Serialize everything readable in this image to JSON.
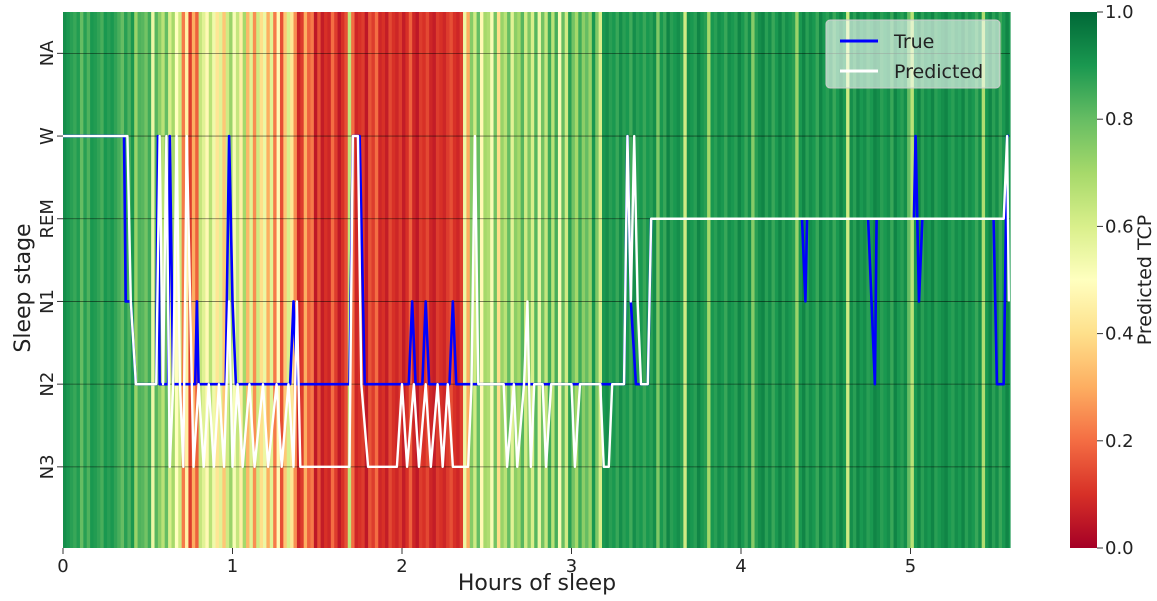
{
  "chart_data": {
    "type": "heatmap",
    "xlabel": "Hours of sleep",
    "ylabel": "Sleep stage",
    "xlim": [
      0,
      5.58
    ],
    "x_ticks": [
      0,
      1,
      2,
      3,
      4,
      5
    ],
    "y_categories": [
      "NA",
      "W",
      "REM",
      "N1",
      "N2",
      "N3"
    ],
    "colorbar": {
      "label": "Predicted TCP",
      "range": [
        0.0,
        1.0
      ],
      "ticks": [
        "0.0",
        "0.2",
        "0.4",
        "0.6",
        "0.8",
        "1.0"
      ],
      "colormap": "RdYlGn",
      "stops": [
        "#a50026",
        "#d73027",
        "#f46d43",
        "#fdae61",
        "#fee08b",
        "#ffffbf",
        "#d9ef8b",
        "#a6d96a",
        "#66bd63",
        "#1a9850",
        "#006837"
      ]
    },
    "tcp_background": {
      "x_start": 0,
      "step_hours": 0.02,
      "values": [
        0.92,
        0.9,
        0.88,
        0.86,
        0.89,
        0.8,
        0.88,
        0.83,
        0.9,
        0.89,
        0.87,
        0.84,
        0.9,
        0.88,
        0.9,
        0.87,
        0.84,
        0.8,
        0.88,
        0.83,
        0.9,
        0.72,
        0.83,
        0.82,
        0.78,
        0.85,
        0.55,
        0.82,
        0.74,
        0.66,
        0.8,
        0.6,
        0.7,
        0.5,
        0.62,
        0.22,
        0.45,
        0.12,
        0.3,
        0.18,
        0.64,
        0.58,
        0.48,
        0.66,
        0.54,
        0.42,
        0.58,
        0.35,
        0.62,
        0.72,
        0.52,
        0.64,
        0.45,
        0.7,
        0.32,
        0.58,
        0.25,
        0.62,
        0.4,
        0.55,
        0.3,
        0.58,
        0.22,
        0.48,
        0.15,
        0.35,
        0.6,
        0.42,
        0.25,
        0.08,
        0.12,
        0.3,
        0.18,
        0.22,
        0.05,
        0.15,
        0.06,
        0.1,
        0.08,
        0.2,
        0.12,
        0.05,
        0.1,
        0.15,
        0.65,
        0.2,
        0.08,
        0.1,
        0.12,
        0.05,
        0.16,
        0.12,
        0.2,
        0.08,
        0.1,
        0.06,
        0.14,
        0.1,
        0.08,
        0.12,
        0.06,
        0.1,
        0.18,
        0.08,
        0.05,
        0.12,
        0.1,
        0.14,
        0.08,
        0.06,
        0.12,
        0.1,
        0.08,
        0.12,
        0.15,
        0.1,
        0.08,
        0.12,
        0.55,
        0.3,
        0.75,
        0.62,
        0.8,
        0.48,
        0.7,
        0.68,
        0.52,
        0.78,
        0.4,
        0.72,
        0.66,
        0.8,
        0.58,
        0.74,
        0.7,
        0.82,
        0.62,
        0.76,
        0.6,
        0.82,
        0.55,
        0.78,
        0.64,
        0.85,
        0.66,
        0.84,
        0.52,
        0.8,
        0.62,
        0.88,
        0.78,
        0.7,
        0.85,
        0.74,
        0.8,
        0.72,
        0.9,
        0.76,
        0.6,
        0.9,
        0.92,
        0.88,
        0.9,
        0.86,
        0.92,
        0.88,
        0.9,
        0.85,
        0.92,
        0.88,
        0.9,
        0.86,
        0.9,
        0.88,
        0.92,
        0.76,
        0.9,
        0.86,
        0.94,
        0.88,
        0.9,
        0.92,
        0.88,
        0.62,
        0.92,
        0.9,
        0.88,
        0.94,
        0.9,
        0.88,
        0.7,
        0.9,
        0.88,
        0.92,
        0.9,
        0.86,
        0.92,
        0.9,
        0.88,
        0.94,
        0.9,
        0.86,
        0.92,
        0.75,
        0.88,
        0.92,
        0.94,
        0.88,
        0.92,
        0.86,
        0.9,
        0.94,
        0.88,
        0.92,
        0.9,
        0.88,
        0.72,
        0.9,
        0.94,
        0.88,
        0.92,
        0.9,
        0.86,
        0.94,
        0.9,
        0.88,
        0.92,
        0.86,
        0.9,
        0.94,
        0.9,
        0.62,
        0.92,
        0.88,
        0.94,
        0.9,
        0.92,
        0.88,
        0.9,
        0.94,
        0.92,
        0.88,
        0.9,
        0.92,
        0.86,
        0.94,
        0.9,
        0.88,
        0.92,
        0.8,
        0.66,
        0.9,
        0.94,
        0.88,
        0.92,
        0.9,
        0.94,
        0.88,
        0.9,
        0.92,
        0.94,
        0.9,
        0.88,
        0.92,
        0.9,
        0.94,
        0.88,
        0.92,
        0.9,
        0.86,
        0.92,
        0.68,
        0.9,
        0.94,
        0.88,
        0.92,
        0.86,
        0.9,
        0.94,
        0.9,
        0.88
      ]
    },
    "series": [
      {
        "name": "True",
        "color": "#0000ff",
        "points": [
          [
            0,
            "W"
          ],
          [
            0.36,
            "W"
          ],
          [
            0.37,
            "N1"
          ],
          [
            0.4,
            "N1"
          ],
          [
            0.43,
            "N2"
          ],
          [
            0.55,
            "N2"
          ],
          [
            0.56,
            "W"
          ],
          [
            0.57,
            "N2"
          ],
          [
            0.62,
            "N2"
          ],
          [
            0.63,
            "W"
          ],
          [
            0.65,
            "N2"
          ],
          [
            0.78,
            "N2"
          ],
          [
            0.79,
            "N1"
          ],
          [
            0.8,
            "N2"
          ],
          [
            0.96,
            "N2"
          ],
          [
            0.98,
            "W"
          ],
          [
            1.0,
            "N1"
          ],
          [
            1.02,
            "N2"
          ],
          [
            1.34,
            "N2"
          ],
          [
            1.36,
            "N1"
          ],
          [
            1.38,
            "N2"
          ],
          [
            1.69,
            "N2"
          ],
          [
            1.71,
            "W"
          ],
          [
            1.75,
            "W"
          ],
          [
            1.78,
            "N2"
          ],
          [
            2.04,
            "N2"
          ],
          [
            2.06,
            "N1"
          ],
          [
            2.08,
            "N2"
          ],
          [
            2.12,
            "N2"
          ],
          [
            2.14,
            "N1"
          ],
          [
            2.16,
            "N2"
          ],
          [
            2.28,
            "N2"
          ],
          [
            2.3,
            "N1"
          ],
          [
            2.32,
            "N2"
          ],
          [
            3.31,
            "N2"
          ],
          [
            3.33,
            "W"
          ],
          [
            3.35,
            "N1"
          ],
          [
            3.38,
            "N2"
          ],
          [
            3.45,
            "N2"
          ],
          [
            3.47,
            "REM"
          ],
          [
            4.36,
            "REM"
          ],
          [
            4.38,
            "N1"
          ],
          [
            4.39,
            "REM"
          ],
          [
            4.75,
            "REM"
          ],
          [
            4.77,
            "N1"
          ],
          [
            4.79,
            "N2"
          ],
          [
            4.8,
            "REM"
          ],
          [
            5.02,
            "REM"
          ],
          [
            5.03,
            "W"
          ],
          [
            5.05,
            "N1"
          ],
          [
            5.07,
            "REM"
          ],
          [
            5.49,
            "REM"
          ],
          [
            5.51,
            "N2"
          ],
          [
            5.55,
            "N2"
          ],
          [
            5.57,
            "W"
          ],
          [
            5.58,
            "W"
          ]
        ]
      },
      {
        "name": "Predicted",
        "color": "#ffffff",
        "points": [
          [
            0,
            "W"
          ],
          [
            0.38,
            "W"
          ],
          [
            0.4,
            "N1"
          ],
          [
            0.43,
            "N2"
          ],
          [
            0.55,
            "N2"
          ],
          [
            0.57,
            "W"
          ],
          [
            0.59,
            "N2"
          ],
          [
            0.61,
            "W"
          ],
          [
            0.63,
            "N3"
          ],
          [
            0.65,
            "N2"
          ],
          [
            0.67,
            "W"
          ],
          [
            0.69,
            "N2"
          ],
          [
            0.71,
            "N3"
          ],
          [
            0.73,
            "W"
          ],
          [
            0.75,
            "N1"
          ],
          [
            0.77,
            "N3"
          ],
          [
            0.8,
            "N2"
          ],
          [
            0.83,
            "N3"
          ],
          [
            0.86,
            "N2"
          ],
          [
            0.89,
            "N3"
          ],
          [
            0.92,
            "N2"
          ],
          [
            0.95,
            "N3"
          ],
          [
            0.98,
            "N1"
          ],
          [
            1.0,
            "N3"
          ],
          [
            1.03,
            "N2"
          ],
          [
            1.06,
            "N3"
          ],
          [
            1.1,
            "N2"
          ],
          [
            1.13,
            "N3"
          ],
          [
            1.18,
            "N2"
          ],
          [
            1.21,
            "N3"
          ],
          [
            1.26,
            "N2"
          ],
          [
            1.29,
            "N3"
          ],
          [
            1.33,
            "N2"
          ],
          [
            1.36,
            "N3"
          ],
          [
            1.38,
            "N1"
          ],
          [
            1.4,
            "N3"
          ],
          [
            1.69,
            "N3"
          ],
          [
            1.71,
            "W"
          ],
          [
            1.74,
            "W"
          ],
          [
            1.76,
            "N2"
          ],
          [
            1.8,
            "N3"
          ],
          [
            1.97,
            "N3"
          ],
          [
            2.0,
            "N2"
          ],
          [
            2.03,
            "N3"
          ],
          [
            2.07,
            "N2"
          ],
          [
            2.1,
            "N3"
          ],
          [
            2.14,
            "N2"
          ],
          [
            2.17,
            "N3"
          ],
          [
            2.21,
            "N2"
          ],
          [
            2.24,
            "N3"
          ],
          [
            2.27,
            "N2"
          ],
          [
            2.3,
            "N3"
          ],
          [
            2.39,
            "N3"
          ],
          [
            2.41,
            "N2"
          ],
          [
            2.43,
            "W"
          ],
          [
            2.45,
            "N2"
          ],
          [
            2.6,
            "N2"
          ],
          [
            2.62,
            "N3"
          ],
          [
            2.66,
            "N2"
          ],
          [
            2.68,
            "N3"
          ],
          [
            2.72,
            "N2"
          ],
          [
            2.74,
            "N1"
          ],
          [
            2.76,
            "N3"
          ],
          [
            2.78,
            "N2"
          ],
          [
            2.83,
            "N2"
          ],
          [
            2.85,
            "N3"
          ],
          [
            2.88,
            "N2"
          ],
          [
            3.0,
            "N2"
          ],
          [
            3.02,
            "N3"
          ],
          [
            3.05,
            "N2"
          ],
          [
            3.17,
            "N2"
          ],
          [
            3.19,
            "N3"
          ],
          [
            3.22,
            "N3"
          ],
          [
            3.24,
            "N2"
          ],
          [
            3.31,
            "N2"
          ],
          [
            3.33,
            "W"
          ],
          [
            3.35,
            "N1"
          ],
          [
            3.37,
            "W"
          ],
          [
            3.39,
            "N1"
          ],
          [
            3.41,
            "N2"
          ],
          [
            3.45,
            "N2"
          ],
          [
            3.47,
            "REM"
          ],
          [
            5.55,
            "REM"
          ],
          [
            5.57,
            "W"
          ],
          [
            5.58,
            "N1"
          ]
        ]
      }
    ],
    "legend": {
      "position": "top-right",
      "entries": [
        "True",
        "Predicted"
      ]
    }
  }
}
